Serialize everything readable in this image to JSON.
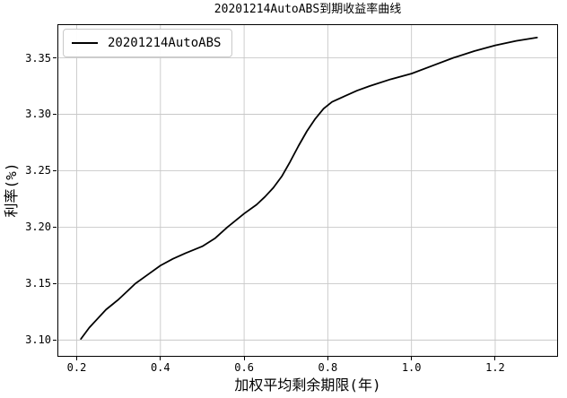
{
  "figure": {
    "background": "#ffffff"
  },
  "legend": {
    "label": "20201214AutoABS"
  },
  "chart_data": {
    "type": "line",
    "title": "20201214AutoABS到期收益率曲线",
    "xlabel": "加权平均剩余期限(年)",
    "ylabel": "利率(%)",
    "legend_entries": [
      "20201214AutoABS"
    ],
    "legend_position": "upper left",
    "grid": true,
    "xlim": [
      0.156,
      1.348
    ],
    "ylim": [
      3.086,
      3.379
    ],
    "xticks": [
      0.2,
      0.4,
      0.6,
      0.8,
      1.0,
      1.2
    ],
    "yticks": [
      3.1,
      3.15,
      3.2,
      3.25,
      3.3,
      3.35
    ],
    "xtick_labels": [
      "0.2",
      "0.4",
      "0.6",
      "0.8",
      "1.0",
      "1.2"
    ],
    "ytick_labels": [
      "3.10",
      "3.15",
      "3.20",
      "3.25",
      "3.30",
      "3.35"
    ],
    "colors": {
      "line": "#000000",
      "grid": "#c8c8c8",
      "spine": "#000000"
    },
    "series": [
      {
        "name": "20201214AutoABS",
        "color": "#000000",
        "x": [
          0.21,
          0.23,
          0.25,
          0.27,
          0.3,
          0.32,
          0.34,
          0.37,
          0.4,
          0.43,
          0.46,
          0.5,
          0.53,
          0.56,
          0.6,
          0.63,
          0.65,
          0.67,
          0.69,
          0.71,
          0.73,
          0.75,
          0.77,
          0.79,
          0.81,
          0.84,
          0.87,
          0.9,
          0.95,
          1.0,
          1.05,
          1.1,
          1.15,
          1.2,
          1.25,
          1.3
        ],
        "y": [
          3.101,
          3.111,
          3.119,
          3.127,
          3.136,
          3.143,
          3.15,
          3.158,
          3.166,
          3.172,
          3.177,
          3.183,
          3.19,
          3.2,
          3.212,
          3.22,
          3.227,
          3.235,
          3.245,
          3.258,
          3.272,
          3.285,
          3.296,
          3.305,
          3.311,
          3.316,
          3.321,
          3.325,
          3.331,
          3.336,
          3.343,
          3.35,
          3.356,
          3.361,
          3.365,
          3.368
        ]
      }
    ]
  }
}
